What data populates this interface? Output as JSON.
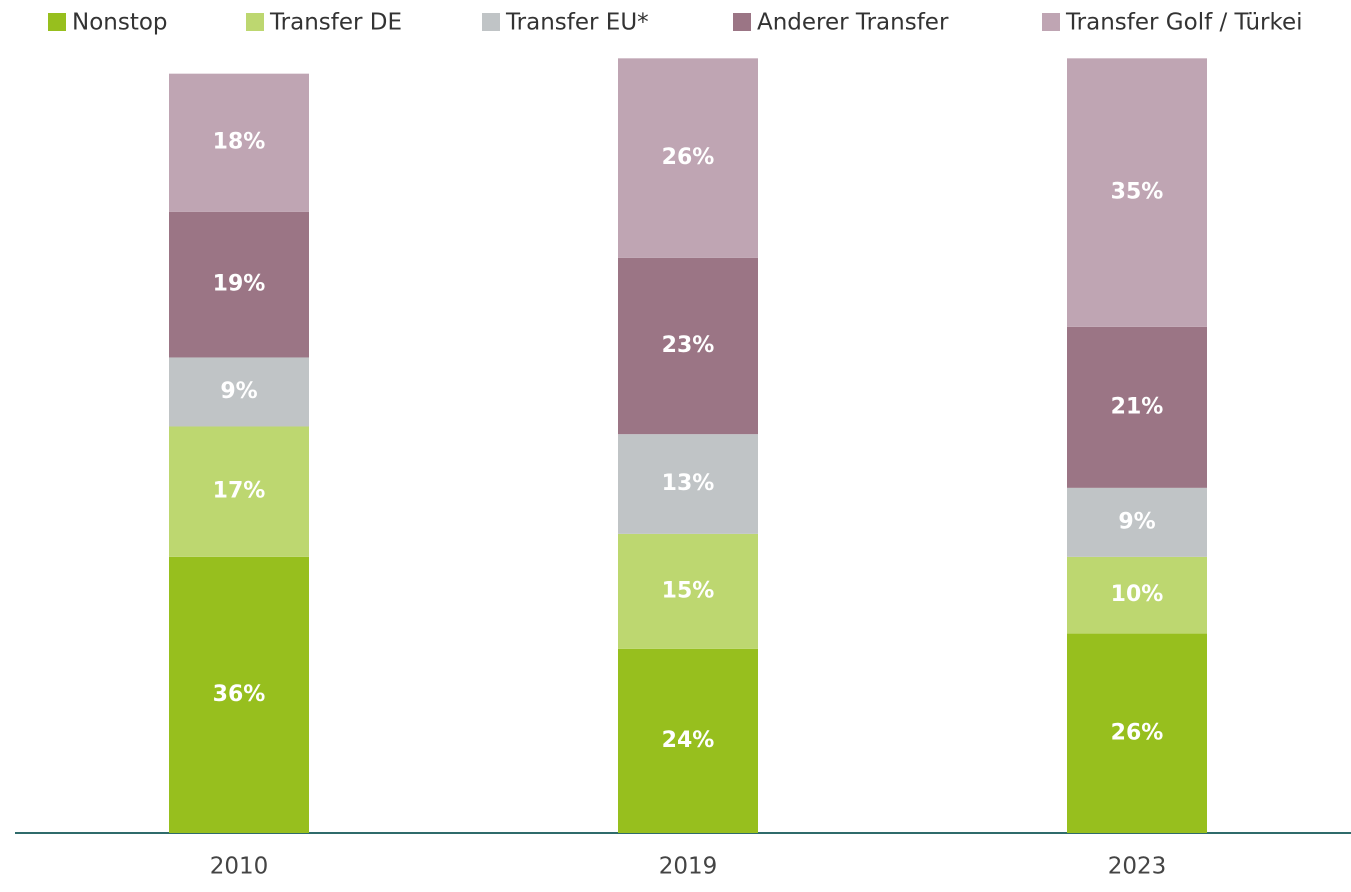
{
  "chart_data": {
    "type": "stacked_bar",
    "categories": [
      "2010",
      "2019",
      "2023"
    ],
    "ylim": [
      0,
      100
    ],
    "legend": "top",
    "series": [
      {
        "name": "Nonstop",
        "color": "#97bf1e",
        "values": [
          36,
          24,
          26
        ],
        "value_labels": [
          "36%",
          "24%",
          "26%"
        ]
      },
      {
        "name": "Transfer DE",
        "color": "#bdd770",
        "values": [
          17,
          15,
          10
        ],
        "value_labels": [
          "17%",
          "15%",
          "10%"
        ]
      },
      {
        "name": "Transfer EU*",
        "color": "#c0c4c6",
        "values": [
          9,
          13,
          9
        ],
        "value_labels": [
          "9%",
          "13%",
          "9%"
        ]
      },
      {
        "name": "Anderer Transfer",
        "color": "#9b7585",
        "values": [
          19,
          23,
          21
        ],
        "value_labels": [
          "19%",
          "23%",
          "21%"
        ]
      },
      {
        "name": "Transfer Golf / Türkei",
        "color": "#bfa5b3",
        "values": [
          18,
          26,
          35
        ],
        "value_labels": [
          "18%",
          "26%",
          "35%"
        ]
      }
    ]
  }
}
